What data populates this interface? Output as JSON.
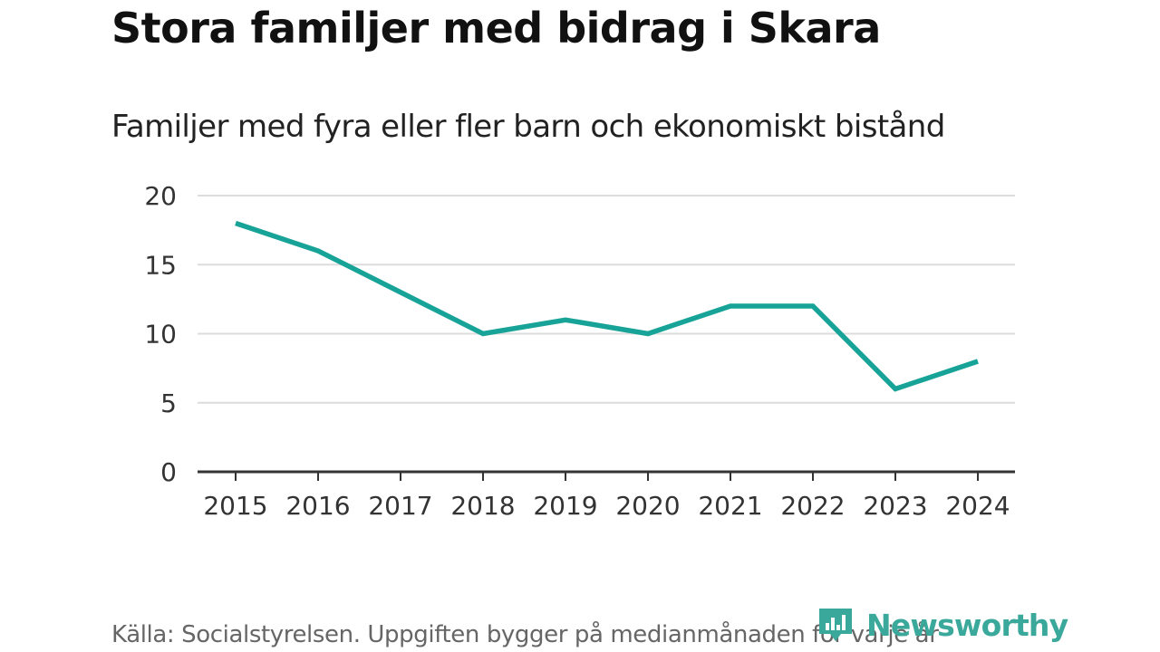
{
  "chart_data": {
    "type": "line",
    "title": "Stora familjer med bidrag i Skara",
    "subtitle": "Familjer med fyra eller fler barn och ekonomiskt bistånd",
    "categories": [
      "2015",
      "2016",
      "2017",
      "2018",
      "2019",
      "2020",
      "2021",
      "2022",
      "2023",
      "2024"
    ],
    "series": [
      {
        "values": [
          18,
          16,
          13,
          10,
          11,
          10,
          12,
          12,
          6,
          8
        ],
        "color": "#17a398"
      }
    ],
    "ylim": [
      0,
      20
    ],
    "yticks": [
      0,
      5,
      10,
      15,
      20
    ],
    "grid": true,
    "xlabel": "",
    "ylabel": ""
  },
  "source": "Källa: Socialstyrelsen. Uppgiften bygger på medianmånaden för varje år",
  "brand": {
    "name": "Newsworthy",
    "icon": "newsworthy-logo-icon",
    "color": "#3aa89a"
  }
}
